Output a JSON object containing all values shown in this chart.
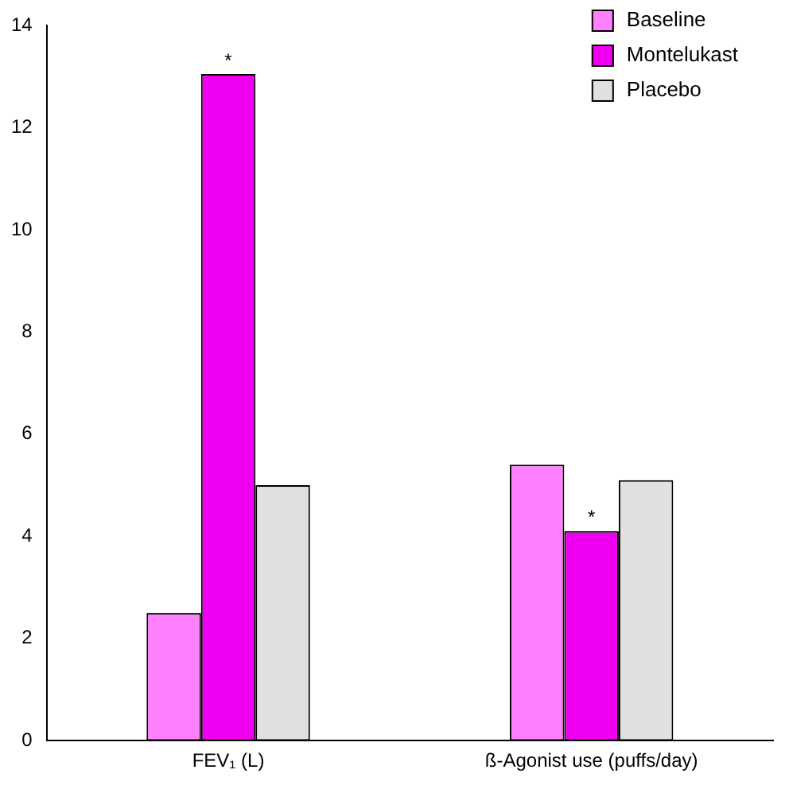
{
  "chart_data": {
    "type": "bar",
    "categories": [
      "FEV₁ (L)",
      "ß-Agonist use (puffs/day)"
    ],
    "series": [
      {
        "name": "Baseline",
        "color": "#ff80ff",
        "values": [
          2.5,
          5.4
        ]
      },
      {
        "name": "Montelukast",
        "color": "#f000f0",
        "values": [
          13.05,
          4.1
        ]
      },
      {
        "name": "Placebo",
        "color": "#e0e0e0",
        "values": [
          5.0,
          5.1
        ]
      }
    ],
    "ylim": [
      0,
      14
    ],
    "yticks": [
      0,
      2,
      4,
      6,
      8,
      10,
      12,
      14
    ],
    "grid": false,
    "legend": "top right",
    "annotations": [
      {
        "text": "*",
        "x": "FEV₁ (L)",
        "y": 13.05
      },
      {
        "text": "*",
        "x": "ß-Agonist use (puffs/day)",
        "y": 4.1
      }
    ]
  }
}
